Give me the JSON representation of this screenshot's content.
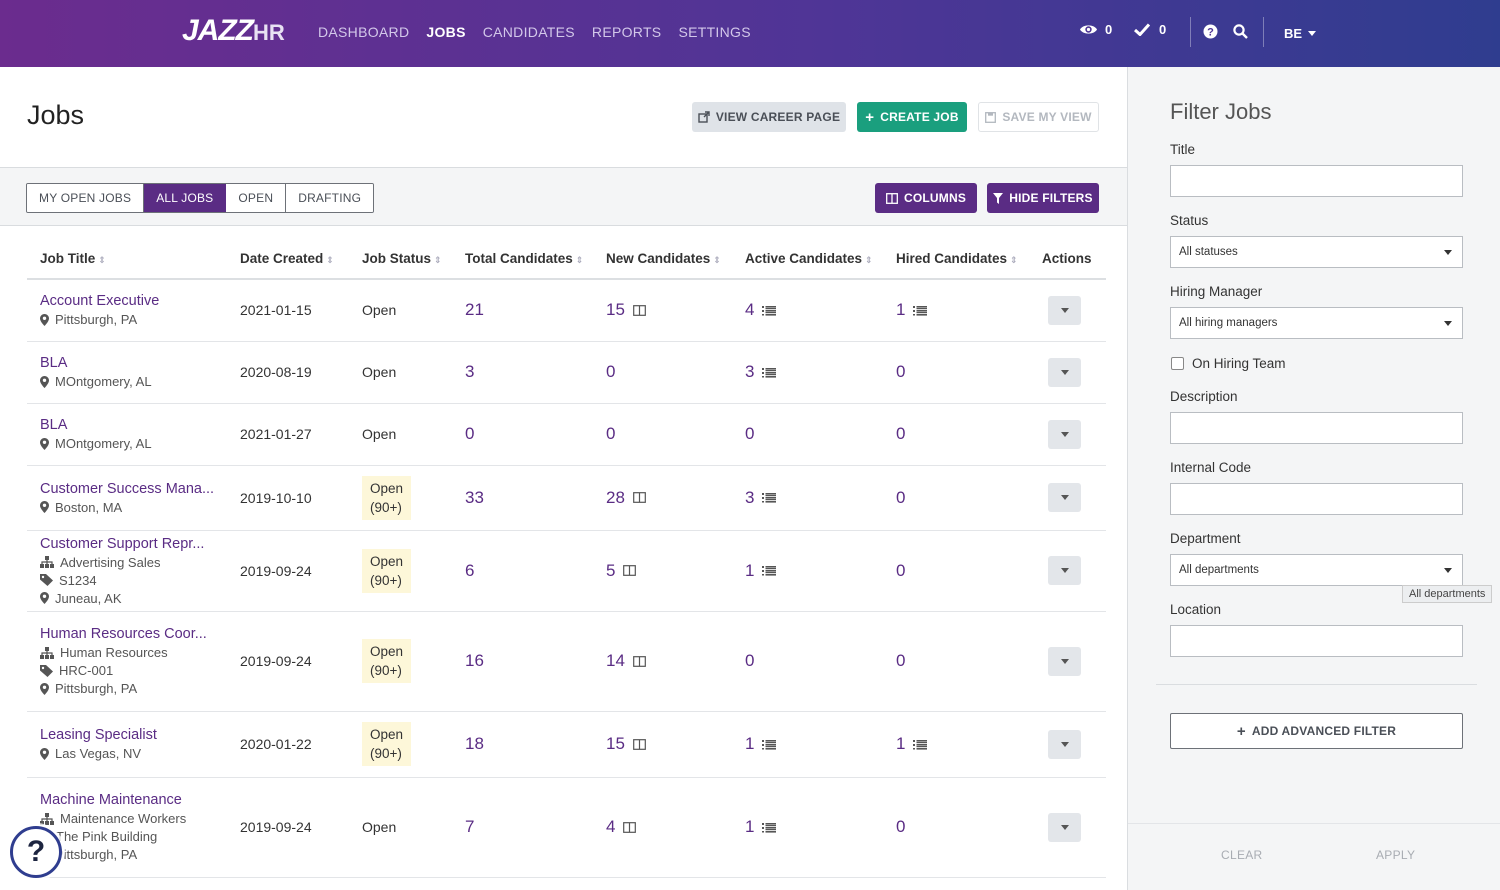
{
  "nav": {
    "logo_main": "JAZZ",
    "logo_hr": "HR",
    "links": [
      {
        "label": "DASHBOARD",
        "active": false
      },
      {
        "label": "JOBS",
        "active": true
      },
      {
        "label": "CANDIDATES",
        "active": false
      },
      {
        "label": "REPORTS",
        "active": false
      },
      {
        "label": "SETTINGS",
        "active": false
      }
    ],
    "watch_count": "0",
    "check_count": "0",
    "user_initials": "BE"
  },
  "page": {
    "title": "Jobs",
    "view_career_label": "VIEW CAREER PAGE",
    "create_job_label": "CREATE JOB",
    "save_view_label": "SAVE MY VIEW"
  },
  "toolbar": {
    "segments": [
      {
        "label": "MY OPEN JOBS",
        "active": false
      },
      {
        "label": "ALL JOBS",
        "active": true
      },
      {
        "label": "OPEN",
        "active": false
      },
      {
        "label": "DRAFTING",
        "active": false
      }
    ],
    "columns_label": "COLUMNS",
    "hide_filters_label": "HIDE FILTERS"
  },
  "table": {
    "headers": [
      "Job Title",
      "Date Created",
      "Job Status",
      "Total Candidates",
      "New Candidates",
      "Active Candidates",
      "Hired Candidates",
      "Actions"
    ],
    "rows": [
      {
        "title": "Account Executive",
        "meta": [
          {
            "icon": "map-pin-icon",
            "text": "Pittsburgh, PA"
          }
        ],
        "date": "2021-01-15",
        "status": "Open",
        "status_badge": false,
        "total": "21",
        "new": "15",
        "new_icon": true,
        "active": "4",
        "active_icon": true,
        "hired": "1",
        "hired_icon": true
      },
      {
        "title": "BLA",
        "meta": [
          {
            "icon": "map-pin-icon",
            "text": "MOntgomery, AL"
          }
        ],
        "date": "2020-08-19",
        "status": "Open",
        "status_badge": false,
        "total": "3",
        "new": "0",
        "new_icon": false,
        "active": "3",
        "active_icon": true,
        "hired": "0",
        "hired_icon": false
      },
      {
        "title": "BLA",
        "meta": [
          {
            "icon": "map-pin-icon",
            "text": "MOntgomery, AL"
          }
        ],
        "date": "2021-01-27",
        "status": "Open",
        "status_badge": false,
        "total": "0",
        "new": "0",
        "new_icon": false,
        "active": "0",
        "active_icon": false,
        "hired": "0",
        "hired_icon": false
      },
      {
        "title": "Customer Success Mana...",
        "meta": [
          {
            "icon": "map-pin-icon",
            "text": "Boston, MA"
          }
        ],
        "date": "2019-10-10",
        "status": "Open",
        "status2": "(90+)",
        "status_badge": true,
        "total": "33",
        "new": "28",
        "new_icon": true,
        "active": "3",
        "active_icon": true,
        "hired": "0",
        "hired_icon": false
      },
      {
        "title": "Customer Support Repr...",
        "meta": [
          {
            "icon": "org-chart-icon",
            "text": "Advertising Sales"
          },
          {
            "icon": "tag-icon",
            "text": "S1234"
          },
          {
            "icon": "map-pin-icon",
            "text": "Juneau, AK"
          }
        ],
        "date": "2019-09-24",
        "status": "Open",
        "status2": "(90+)",
        "status_badge": true,
        "total": "6",
        "new": "5",
        "new_icon": true,
        "active": "1",
        "active_icon": true,
        "hired": "0",
        "hired_icon": false
      },
      {
        "title": "Human Resources Coor...",
        "meta": [
          {
            "icon": "org-chart-icon",
            "text": "Human Resources"
          },
          {
            "icon": "tag-icon",
            "text": "HRC-001"
          },
          {
            "icon": "map-pin-icon",
            "text": "Pittsburgh, PA"
          }
        ],
        "date": "2019-09-24",
        "status": "Open",
        "status2": "(90+)",
        "status_badge": true,
        "total": "16",
        "new": "14",
        "new_icon": true,
        "active": "0",
        "active_icon": false,
        "hired": "0",
        "hired_icon": false
      },
      {
        "title": "Leasing Specialist",
        "meta": [
          {
            "icon": "map-pin-icon",
            "text": "Las Vegas, NV"
          }
        ],
        "date": "2020-01-22",
        "status": "Open",
        "status2": "(90+)",
        "status_badge": true,
        "total": "18",
        "new": "15",
        "new_icon": true,
        "active": "1",
        "active_icon": true,
        "hired": "1",
        "hired_icon": true
      },
      {
        "title": "Machine Maintenance",
        "meta": [
          {
            "icon": "org-chart-icon",
            "text": "Maintenance Workers"
          },
          {
            "icon": "building-icon",
            "text": "The Pink Building"
          },
          {
            "icon": "map-pin-icon",
            "text": "Pittsburgh, PA"
          }
        ],
        "date": "2019-09-24",
        "status": "Open",
        "status_badge": false,
        "total": "7",
        "new": "4",
        "new_icon": true,
        "active": "1",
        "active_icon": true,
        "hired": "0",
        "hired_icon": false
      }
    ]
  },
  "filter": {
    "title": "Filter Jobs",
    "title_label": "Title",
    "status_label": "Status",
    "status_value": "All statuses",
    "hiring_manager_label": "Hiring Manager",
    "hiring_manager_value": "All hiring managers",
    "on_hiring_team_label": "On Hiring Team",
    "description_label": "Description",
    "internal_code_label": "Internal Code",
    "department_label": "Department",
    "department_value": "All departments",
    "department_tooltip": "All departments",
    "location_label": "Location",
    "advanced_filter_label": "ADD ADVANCED FILTER",
    "clear_label": "CLEAR",
    "apply_label": "APPLY"
  },
  "help": {
    "glyph": "?"
  },
  "colors": {
    "brand_purple": "#5a2c84",
    "green": "#1a9f7e",
    "nav_gradient_start": "#6b2c8e",
    "nav_gradient_end": "#2f3d8f"
  }
}
